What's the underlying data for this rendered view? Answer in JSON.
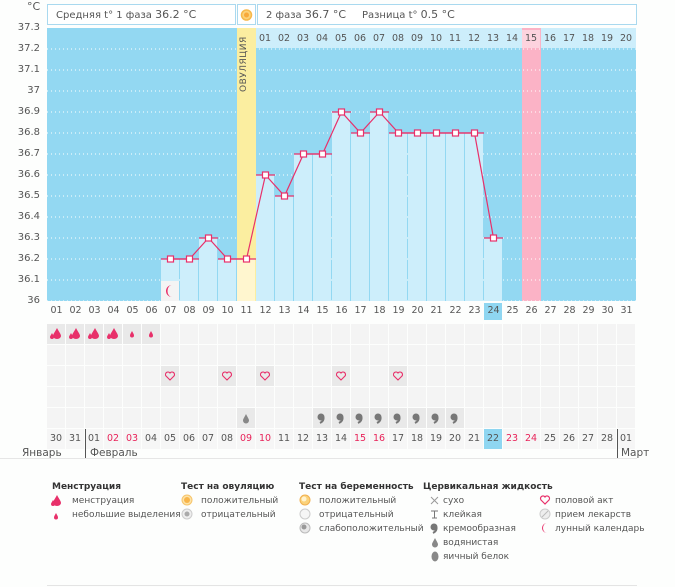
{
  "header": {
    "unit": "°C",
    "phase1_label": "Средняя t° 1 фаза",
    "phase1_value": "36.2 °C",
    "phase2_label": "2 фаза",
    "phase2_value": "36.7 °C",
    "diff_label": "Разница t°",
    "diff_value": "0.5 °C"
  },
  "ovulation_label": "ОВУЛЯЦИЯ",
  "colors": {
    "bg_blue": "#93d8f2",
    "bar_fill": "#cdeefb",
    "line": "#e8306a",
    "ovulation": "#fbeea0",
    "marker_pink": "#fbb3c6",
    "today": "#8fd6f1"
  },
  "chart_data": {
    "type": "line",
    "title": "",
    "ylabel": "°C",
    "ylim": [
      36,
      37.3
    ],
    "yticks": [
      "36",
      "36.1",
      "36.2",
      "36.3",
      "36.4",
      "36.5",
      "36.6",
      "36.7",
      "36.8",
      "36.9",
      "37",
      "37.1",
      "37.2",
      "37.3"
    ],
    "cycle_days": [
      "01",
      "02",
      "03",
      "04",
      "05",
      "06",
      "07",
      "08",
      "09",
      "10",
      "11",
      "12",
      "13",
      "14",
      "15",
      "16",
      "17",
      "18",
      "19",
      "20",
      "21",
      "22",
      "23",
      "24",
      "25",
      "26",
      "27",
      "28",
      "29",
      "30",
      "31"
    ],
    "temperatures": [
      null,
      null,
      null,
      null,
      null,
      null,
      36.2,
      36.2,
      36.3,
      36.2,
      36.2,
      36.6,
      36.5,
      36.7,
      36.7,
      36.9,
      36.8,
      36.9,
      36.8,
      36.8,
      36.8,
      36.8,
      36.8,
      36.3,
      null,
      null,
      null,
      null,
      null,
      null,
      null
    ],
    "ovulation_day": 11,
    "phase2_day_labels": [
      "01",
      "02",
      "03",
      "04",
      "05",
      "06",
      "07",
      "08",
      "09",
      "10",
      "11",
      "12",
      "13",
      "14",
      "15",
      "16",
      "17",
      "18",
      "19",
      "20"
    ],
    "marked_phase2_day": "15",
    "marked_cycle_day": 26,
    "current_cycle_day": 24
  },
  "symbols": {
    "menstruation_row": [
      "heavy",
      "heavy",
      "heavy",
      "heavy",
      "light",
      "light",
      null,
      null,
      null,
      null,
      null,
      null,
      null,
      null,
      null,
      null,
      null,
      null,
      null,
      null,
      null,
      null,
      null,
      null,
      null,
      null,
      null,
      null,
      null,
      null,
      null
    ],
    "moon_day": 7,
    "sex_days": [
      7,
      10,
      12,
      16,
      19
    ],
    "fluid_row": [
      null,
      null,
      null,
      null,
      null,
      null,
      null,
      null,
      null,
      null,
      "watery",
      null,
      null,
      null,
      "creamy",
      "creamy",
      "creamy",
      "creamy",
      "creamy",
      "creamy",
      "creamy",
      "creamy",
      null,
      null,
      null,
      null,
      null,
      null,
      null,
      null,
      null
    ]
  },
  "calendar": {
    "dates": [
      "30",
      "31",
      "01",
      "02",
      "03",
      "04",
      "05",
      "06",
      "07",
      "08",
      "09",
      "10",
      "11",
      "12",
      "13",
      "14",
      "15",
      "16",
      "17",
      "18",
      "19",
      "20",
      "21",
      "22",
      "23",
      "24",
      "25",
      "26",
      "27",
      "28",
      "01"
    ],
    "red_dates": [
      3,
      4,
      10,
      11,
      16,
      17,
      24,
      25
    ],
    "current_index": 23,
    "months": [
      "Январь",
      "Февраль",
      "Март"
    ]
  },
  "legend": {
    "menstruation": {
      "title": "Менструация",
      "items": [
        "менструация",
        "небольшие выделения"
      ]
    },
    "ovulation_test": {
      "title": "Тест на овуляцию",
      "items": [
        "положительный",
        "отрицательный"
      ]
    },
    "pregnancy_test": {
      "title": "Тест на беременность",
      "items": [
        "положительный",
        "отрицательный",
        "слабоположительный"
      ]
    },
    "cervical_fluid": {
      "title": "Цервикальная жидкость",
      "items": [
        "сухо",
        "клейкая",
        "кремообразная",
        "водянистая",
        "яичный белок"
      ]
    },
    "other": {
      "items": [
        "половой акт",
        "прием лекарств",
        "лунный календарь"
      ]
    }
  }
}
